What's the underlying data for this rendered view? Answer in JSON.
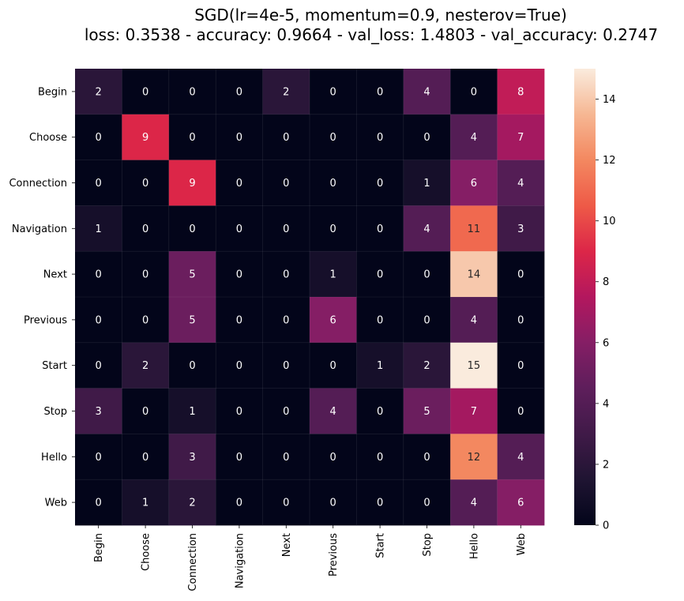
{
  "chart_data": {
    "type": "heatmap",
    "title_lines": [
      "SGD(lr=4e-5, momentum=0.9, nesterov=True)",
      "loss: 0.3538 - accuracy: 0.9664 - val_loss: 1.4803 - val_accuracy: 0.2747"
    ],
    "row_labels": [
      "Begin",
      "Choose",
      "Connection",
      "Navigation",
      "Next",
      "Previous",
      "Start",
      "Stop",
      "Hello",
      "Web"
    ],
    "col_labels": [
      "Begin",
      "Choose",
      "Connection",
      "Navigation",
      "Next",
      "Previous",
      "Start",
      "Stop",
      "Hello",
      "Web"
    ],
    "values": [
      [
        2,
        0,
        0,
        0,
        2,
        0,
        0,
        4,
        0,
        8
      ],
      [
        0,
        9,
        0,
        0,
        0,
        0,
        0,
        0,
        4,
        7
      ],
      [
        0,
        0,
        9,
        0,
        0,
        0,
        0,
        1,
        6,
        4
      ],
      [
        1,
        0,
        0,
        0,
        0,
        0,
        0,
        4,
        11,
        3
      ],
      [
        0,
        0,
        5,
        0,
        0,
        1,
        0,
        0,
        14,
        0
      ],
      [
        0,
        0,
        5,
        0,
        0,
        6,
        0,
        0,
        4,
        0
      ],
      [
        0,
        2,
        0,
        0,
        0,
        0,
        1,
        2,
        15,
        0
      ],
      [
        3,
        0,
        1,
        0,
        0,
        4,
        0,
        5,
        7,
        0
      ],
      [
        0,
        0,
        3,
        0,
        0,
        0,
        0,
        0,
        12,
        4
      ],
      [
        0,
        1,
        2,
        0,
        0,
        0,
        0,
        0,
        4,
        6
      ]
    ],
    "vmin": 0,
    "vmax": 15,
    "colormap": "rocket",
    "colorbar_ticks": [
      0,
      2,
      4,
      6,
      8,
      10,
      12,
      14
    ],
    "annotations": true
  }
}
